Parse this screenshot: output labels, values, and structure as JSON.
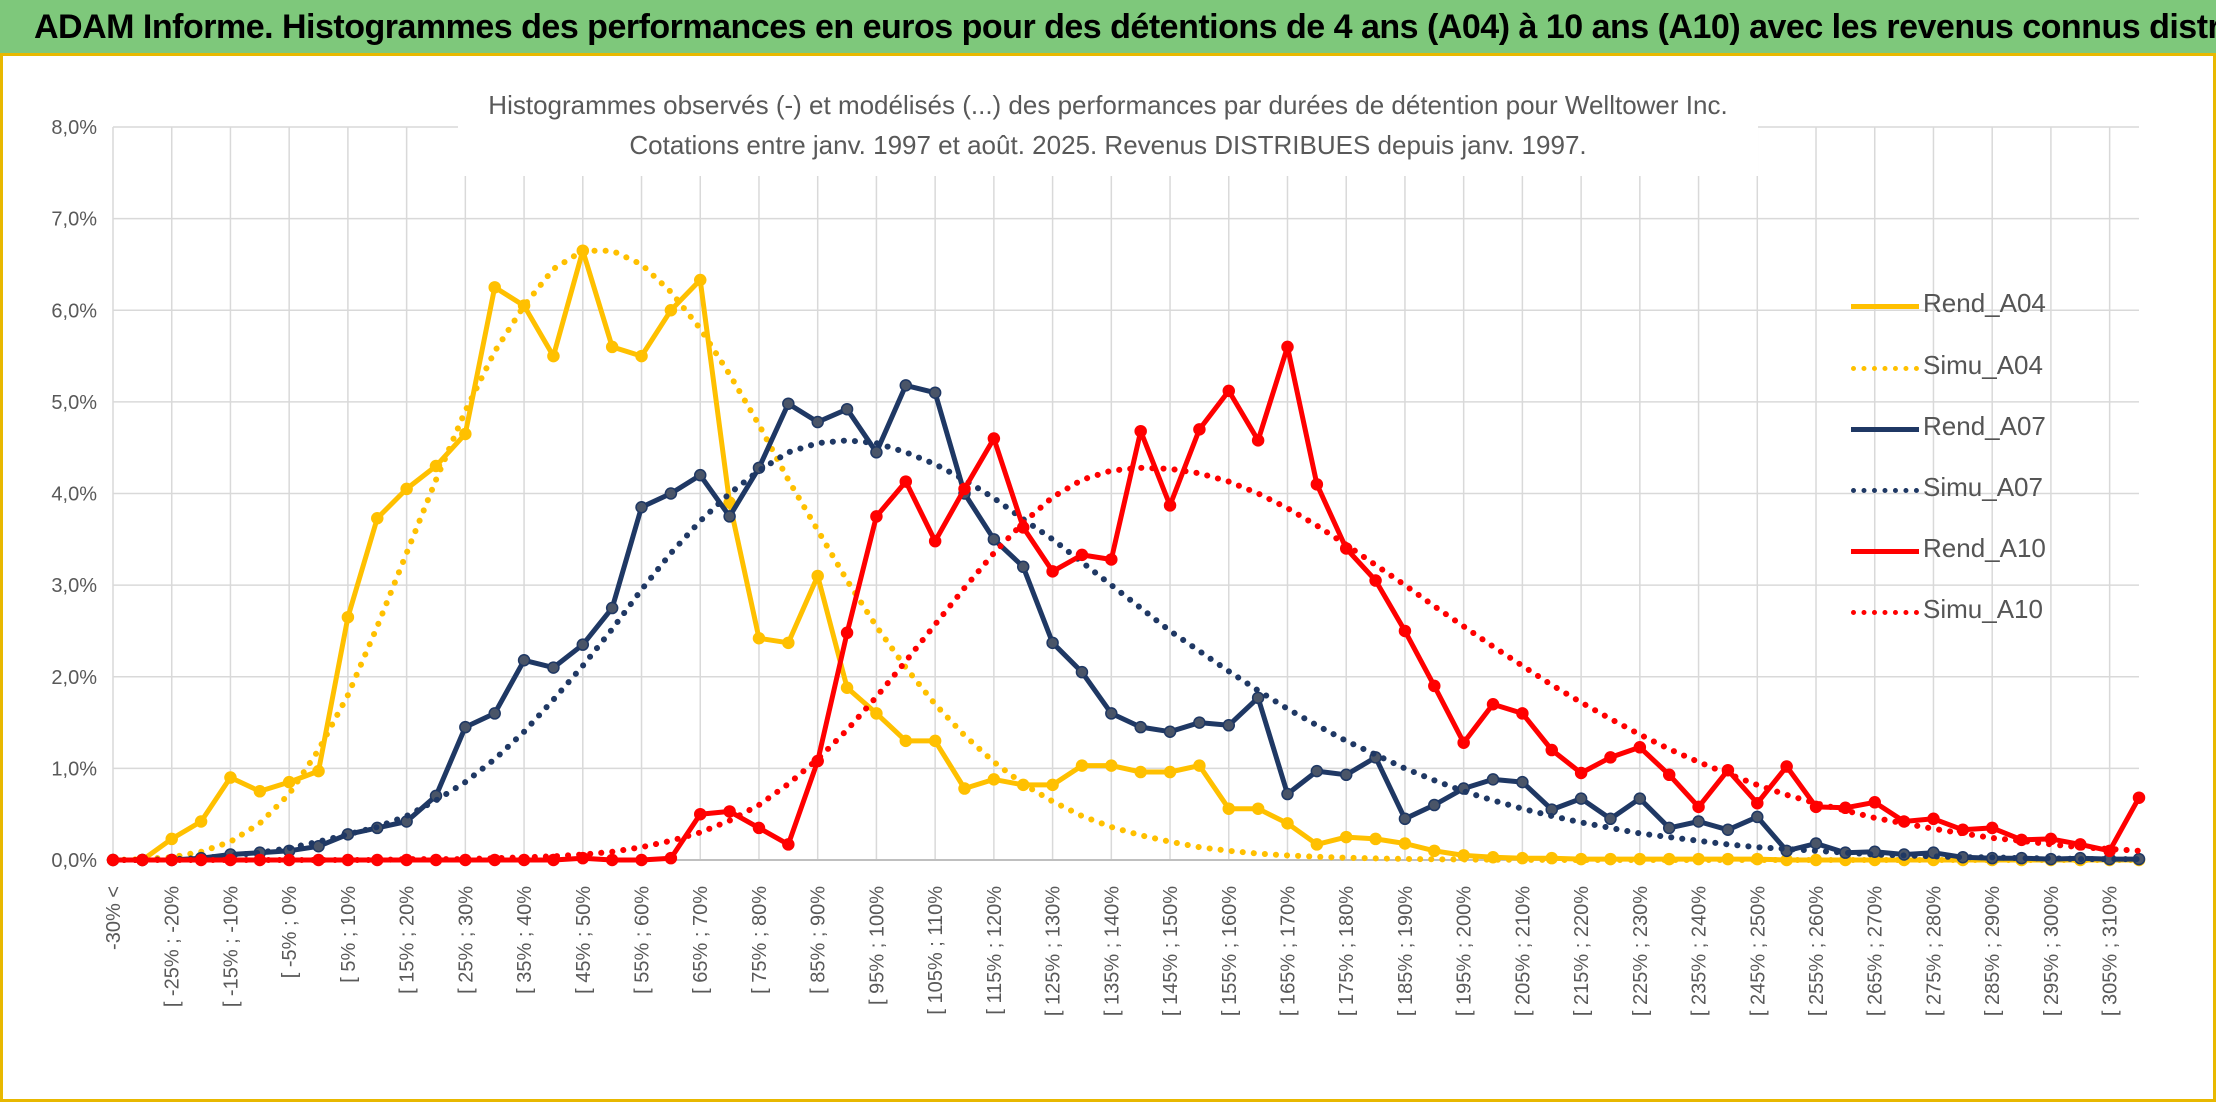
{
  "banner": {
    "title": "ADAM Informe. Histogrammes des performances en euros pour des détentions de 4 ans (A04) à 10 ans (A10) avec les revenus connus distribués"
  },
  "chart_data": {
    "type": "line",
    "title": "Histogrammes observés (-) et modélisés (...) des performances par durées de détention pour Welltower Inc.",
    "subtitle": "Cotations entre janv. 1997 et août. 2025. Revenus DISTRIBUES depuis janv. 1997.",
    "ylim": [
      0,
      8
    ],
    "y_ticks": [
      "0,0%",
      "1,0%",
      "2,0%",
      "3,0%",
      "4,0%",
      "5,0%",
      "6,0%",
      "7,0%",
      "8,0%"
    ],
    "grid": true,
    "legend_position": "right",
    "categories": [
      "-30% <",
      "[ -30% ; -25%",
      "[ -25% ; -20%",
      "[ -20% ; -15%",
      "[ -15% ; -10%",
      "[ -10% ; -5%",
      "[ -5% ; 0%",
      "[ 0% ; 5%",
      "[ 5% ; 10%",
      "[ 10% ; 15%",
      "[ 15% ; 20%",
      "[ 20% ; 25%",
      "[ 25% ; 30%",
      "[ 30% ; 35%",
      "[ 35% ; 40%",
      "[ 40% ; 45%",
      "[ 45% ; 50%",
      "[ 50% ; 55%",
      "[ 55% ; 60%",
      "[ 60% ; 65%",
      "[ 65% ; 70%",
      "[ 70% ; 75%",
      "[ 75% ; 80%",
      "[ 80% ; 85%",
      "[ 85% ; 90%",
      "[ 90% ; 95%",
      "[ 95% ; 100%",
      "[ 100% ; 105%",
      "[ 105% ; 110%",
      "[ 110% ; 115%",
      "[ 115% ; 120%",
      "[ 120% ; 125%",
      "[ 125% ; 130%",
      "[ 130% ; 135%",
      "[ 135% ; 140%",
      "[ 140% ; 145%",
      "[ 145% ; 150%",
      "[ 150% ; 155%",
      "[ 155% ; 160%",
      "[ 160% ; 165%",
      "[ 165% ; 170%",
      "[ 170% ; 175%",
      "[ 175% ; 180%",
      "[ 180% ; 185%",
      "[ 185% ; 190%",
      "[ 190% ; 195%",
      "[ 195% ; 200%",
      "[ 200% ; 205%",
      "[ 205% ; 210%",
      "[ 210% ; 215%",
      "[ 215% ; 220%",
      "[ 220% ; 225%",
      "[ 225% ; 230%",
      "[ 230% ; 235%",
      "[ 235% ; 240%",
      "[ 240% ; 245%",
      "[ 245% ; 250%",
      "[ 250% ; 255%",
      "[ 255% ; 260%",
      "[ 260% ; 265%",
      "[ 265% ; 270%",
      "[ 270% ; 275%",
      "[ 275% ; 280%",
      "[ 280% ; 285%",
      "[ 285% ; 290%",
      "[ 290% ; 295%",
      "[ 295% ; 300%",
      "[ 300% ; 305%",
      "[ 305% ; 310%",
      "[ 310% ; 315%"
    ],
    "shown_tick_labels": [
      "-30% <",
      "[ -25% ; -20%",
      "[ -15% ; -10%",
      "[ -5% ; 0%",
      "[ 5% ; 10%",
      "[ 15% ; 20%",
      "[ 25% ; 30%",
      "[ 35% ; 40%",
      "[ 45% ; 50%",
      "[ 55% ; 60%",
      "[ 65% ; 70%",
      "[ 75% ; 80%",
      "[ 85% ; 90%",
      "[ 95% ; 100%",
      "[ 105% ; 110%",
      "[ 115% ; 120%",
      "[ 125% ; 130%",
      "[ 135% ; 140%",
      "[ 145% ; 150%",
      "[ 155% ; 160%",
      "[ 165% ; 170%",
      "[ 175% ; 180%",
      "[ 185% ; 190%",
      "[ 195% ; 200%",
      "[ 205% ; 210%",
      "[ 215% ; 220%",
      "[ 225% ; 230%",
      "[ 235% ; 240%",
      "[ 245% ; 250%",
      "[ 255% ; 260%",
      "[ 265% ; 270%",
      "[ 275% ; 280%",
      "[ 285% ; 290%",
      "[ 295% ; 300%",
      "[ 305% ; 310%"
    ],
    "series": [
      {
        "name": "Rend_A04",
        "style": "solid",
        "color": "#ffc000",
        "values": [
          0,
          0,
          0.23,
          0.42,
          0.9,
          0.75,
          0.85,
          0.97,
          2.65,
          3.73,
          4.05,
          4.3,
          4.65,
          6.25,
          6.05,
          5.5,
          6.65,
          5.6,
          5.5,
          6.0,
          6.33,
          3.9,
          2.42,
          2.37,
          3.1,
          1.88,
          1.6,
          1.3,
          1.3,
          0.78,
          0.88,
          0.82,
          0.82,
          1.03,
          1.03,
          0.96,
          0.96,
          1.03,
          0.56,
          0.56,
          0.4,
          0.17,
          0.25,
          0.23,
          0.18,
          0.1,
          0.05,
          0.03,
          0.02,
          0.02,
          0.01,
          0.01,
          0.01,
          0.01,
          0.01,
          0.01,
          0.01,
          0,
          0,
          0,
          0,
          0,
          0,
          0,
          0,
          0,
          0,
          0,
          0,
          0
        ]
      },
      {
        "name": "Simu_A04",
        "style": "dotted",
        "color": "#ffc000",
        "values": [
          0,
          0.01,
          0.03,
          0.09,
          0.2,
          0.4,
          0.72,
          1.2,
          1.8,
          2.55,
          3.35,
          4.15,
          4.9,
          5.55,
          6.05,
          6.45,
          6.65,
          6.65,
          6.5,
          6.2,
          5.8,
          5.3,
          4.75,
          4.15,
          3.6,
          3.05,
          2.55,
          2.1,
          1.7,
          1.36,
          1.07,
          0.83,
          0.64,
          0.48,
          0.36,
          0.27,
          0.2,
          0.14,
          0.1,
          0.07,
          0.05,
          0.035,
          0.025,
          0.017,
          0.012,
          0.008,
          0.005,
          0.003,
          0.002,
          0.001,
          0,
          0,
          0,
          0,
          0,
          0,
          0,
          0,
          0,
          0,
          0,
          0,
          0,
          0,
          0,
          0,
          0,
          0,
          0,
          0
        ]
      },
      {
        "name": "Rend_A07",
        "style": "solid",
        "color": "#1f3864",
        "values": [
          0,
          0,
          0,
          0.02,
          0.06,
          0.08,
          0.1,
          0.15,
          0.28,
          0.35,
          0.42,
          0.7,
          1.45,
          1.6,
          2.18,
          2.1,
          2.35,
          2.75,
          3.85,
          4.0,
          4.2,
          3.75,
          4.28,
          4.98,
          4.78,
          4.92,
          4.45,
          5.18,
          5.1,
          4.0,
          3.5,
          3.2,
          2.37,
          2.05,
          1.6,
          1.45,
          1.4,
          1.5,
          1.47,
          1.77,
          0.72,
          0.97,
          0.93,
          1.12,
          0.45,
          0.6,
          0.78,
          0.88,
          0.85,
          0.55,
          0.67,
          0.45,
          0.67,
          0.35,
          0.42,
          0.33,
          0.47,
          0.1,
          0.18,
          0.08,
          0.09,
          0.06,
          0.08,
          0.03,
          0.02,
          0.02,
          0.01,
          0.02,
          0.01,
          0.01
        ]
      },
      {
        "name": "Simu_A07",
        "style": "dotted",
        "color": "#1f3864",
        "values": [
          0,
          0,
          0.01,
          0.02,
          0.05,
          0.08,
          0.13,
          0.2,
          0.28,
          0.36,
          0.48,
          0.65,
          0.85,
          1.1,
          1.4,
          1.75,
          2.12,
          2.52,
          2.95,
          3.35,
          3.7,
          4.0,
          4.25,
          4.45,
          4.55,
          4.58,
          4.55,
          4.45,
          4.32,
          4.15,
          3.95,
          3.72,
          3.5,
          3.25,
          3.0,
          2.75,
          2.5,
          2.28,
          2.06,
          1.85,
          1.65,
          1.47,
          1.3,
          1.15,
          1.0,
          0.87,
          0.75,
          0.65,
          0.56,
          0.48,
          0.41,
          0.35,
          0.29,
          0.25,
          0.21,
          0.17,
          0.14,
          0.12,
          0.1,
          0.08,
          0.06,
          0.05,
          0.04,
          0.03,
          0.03,
          0.02,
          0.02,
          0.01,
          0.01,
          0.01
        ]
      },
      {
        "name": "Rend_A10",
        "style": "solid",
        "color": "#ff0000",
        "values": [
          0,
          0,
          0,
          0,
          0,
          0,
          0,
          0,
          0,
          0,
          0,
          0,
          0,
          0,
          0,
          0,
          0.02,
          0,
          0,
          0.02,
          0.5,
          0.53,
          0.35,
          0.17,
          1.08,
          2.48,
          3.75,
          4.13,
          3.48,
          4.05,
          4.6,
          3.63,
          3.15,
          3.33,
          3.28,
          4.68,
          3.87,
          4.7,
          5.12,
          4.58,
          5.6,
          4.1,
          3.4,
          3.05,
          2.5,
          1.9,
          1.28,
          1.7,
          1.6,
          1.2,
          0.95,
          1.12,
          1.23,
          0.93,
          0.58,
          0.98,
          0.62,
          1.02,
          0.58,
          0.57,
          0.63,
          0.42,
          0.45,
          0.33,
          0.35,
          0.22,
          0.23,
          0.17,
          0.1,
          0.68
        ]
      },
      {
        "name": "Simu_A10",
        "style": "dotted",
        "color": "#ff0000",
        "values": [
          0,
          0,
          0,
          0,
          0,
          0,
          0,
          0,
          0,
          0,
          0.01,
          0.01,
          0.01,
          0.02,
          0.03,
          0.04,
          0.06,
          0.09,
          0.14,
          0.21,
          0.3,
          0.43,
          0.6,
          0.83,
          1.1,
          1.42,
          1.78,
          2.17,
          2.57,
          2.97,
          3.35,
          3.68,
          3.96,
          4.15,
          4.25,
          4.28,
          4.27,
          4.22,
          4.13,
          4.0,
          3.84,
          3.65,
          3.44,
          3.22,
          3.0,
          2.77,
          2.55,
          2.33,
          2.12,
          1.91,
          1.72,
          1.54,
          1.37,
          1.21,
          1.07,
          0.94,
          0.82,
          0.71,
          0.62,
          0.54,
          0.46,
          0.4,
          0.34,
          0.29,
          0.24,
          0.21,
          0.17,
          0.14,
          0.12,
          0.1
        ]
      }
    ]
  }
}
